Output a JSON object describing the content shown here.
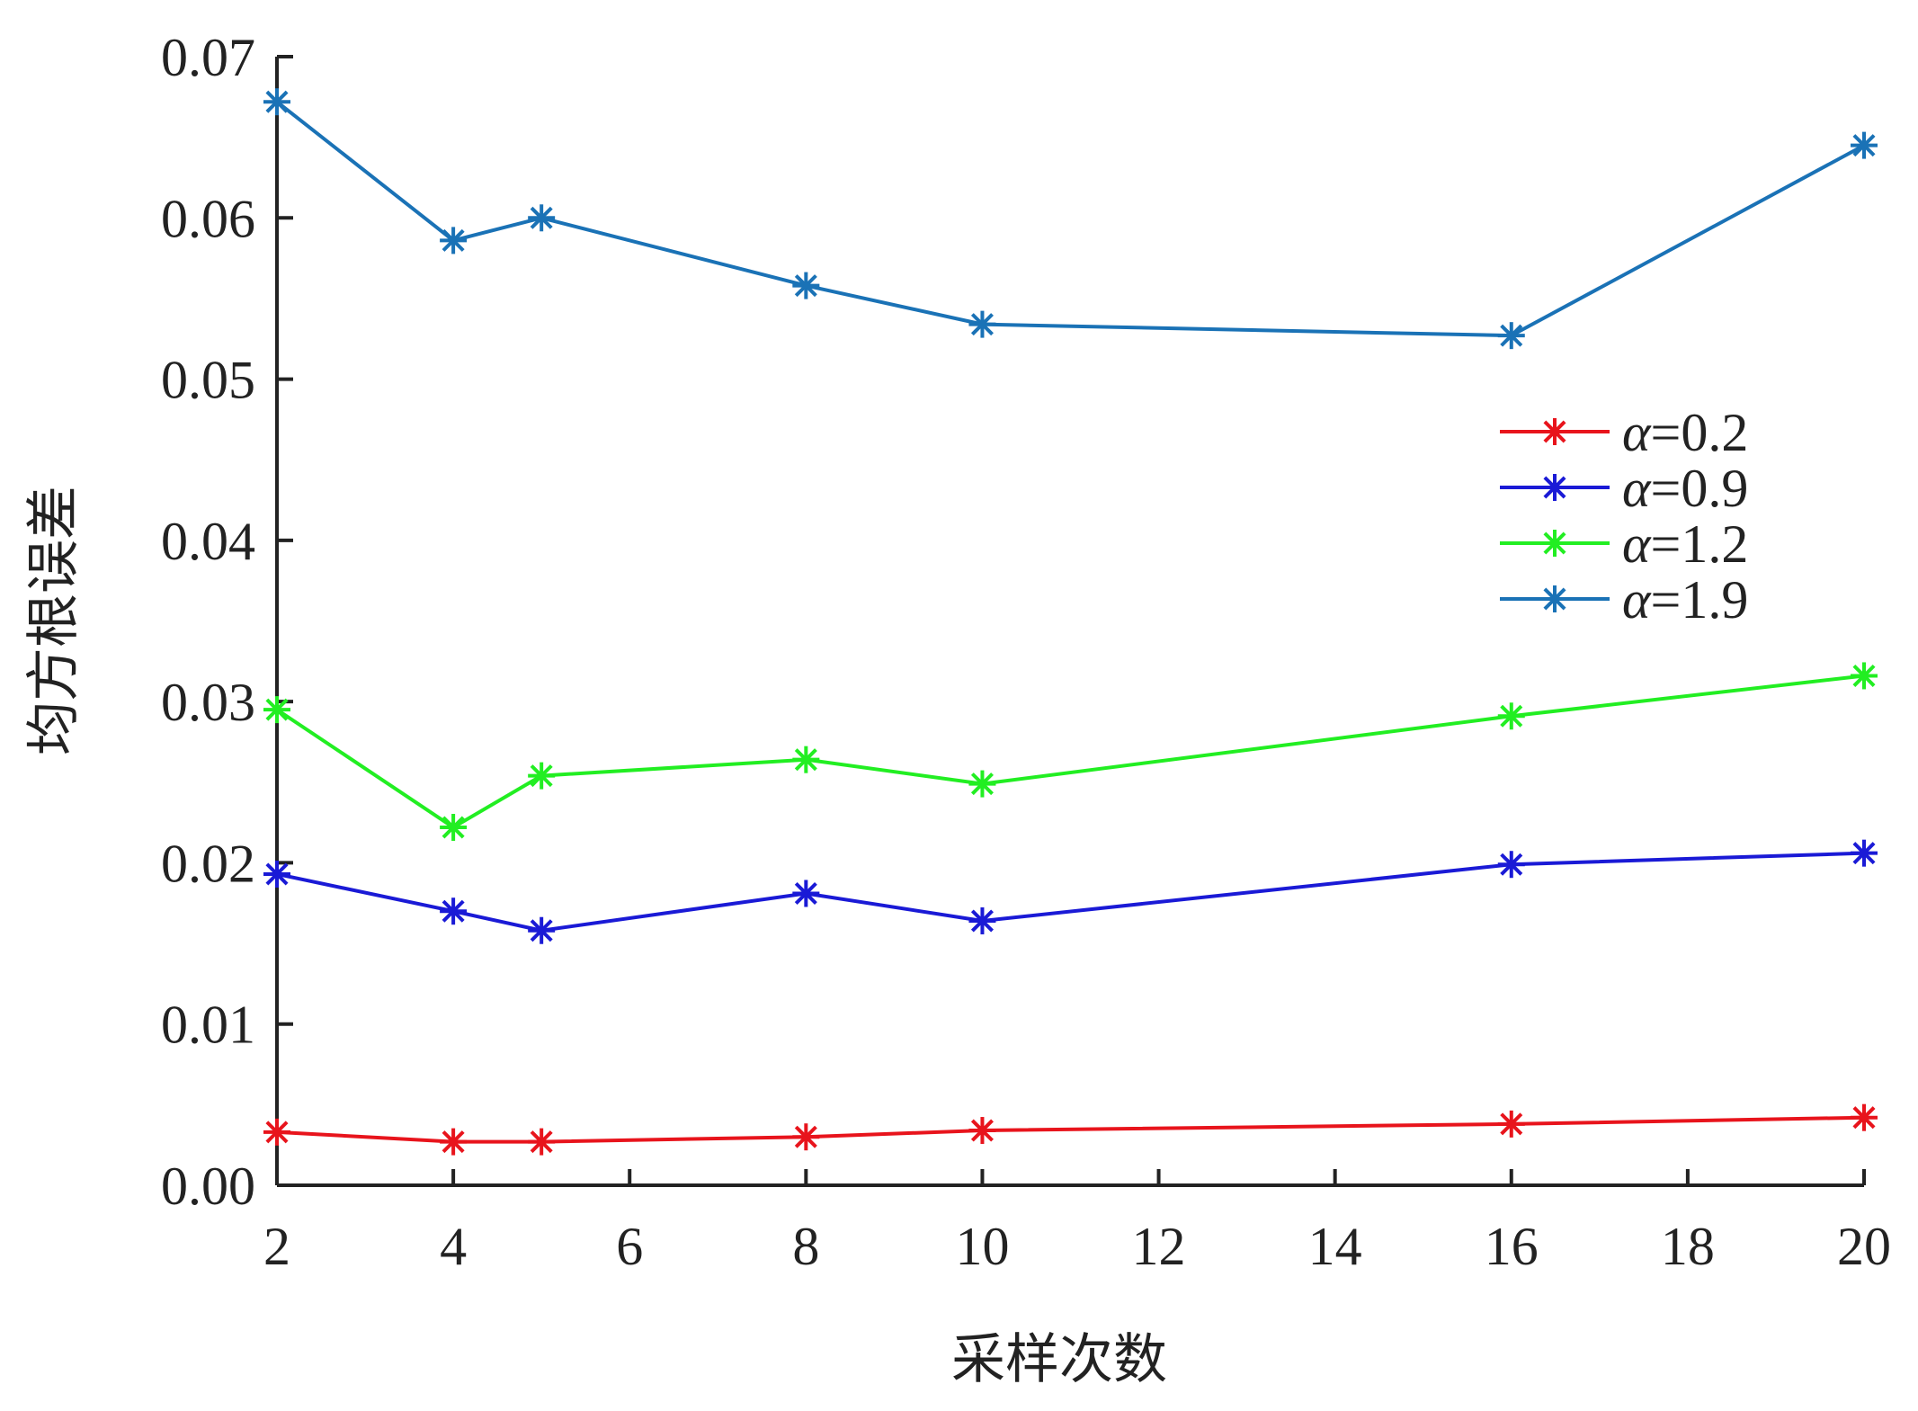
{
  "chart_data": {
    "type": "line",
    "title": "",
    "xlabel": "采样次数",
    "ylabel": "均方根误差",
    "x": [
      2,
      4,
      5,
      8,
      10,
      16,
      20
    ],
    "xlim": [
      2,
      20
    ],
    "ylim": [
      0,
      0.07
    ],
    "xticks": [
      "2",
      "4",
      "6",
      "8",
      "10",
      "12",
      "14",
      "16",
      "18",
      "20"
    ],
    "yticks": [
      "0.00",
      "0.01",
      "0.02",
      "0.03",
      "0.04",
      "0.05",
      "0.06",
      "0.07"
    ],
    "grid": false,
    "legend_position": "right",
    "marker": "asterisk",
    "series": [
      {
        "name": "α=0.2",
        "color": "#e8141c",
        "values": [
          0.0033,
          0.0027,
          0.0027,
          0.003,
          0.0034,
          0.0038,
          0.0042
        ]
      },
      {
        "name": "α=0.9",
        "color": "#1a1ad6",
        "values": [
          0.0193,
          0.017,
          0.0158,
          0.0181,
          0.0164,
          0.0199,
          0.0206
        ]
      },
      {
        "name": "α=1.2",
        "color": "#22ee22",
        "values": [
          0.0295,
          0.0222,
          0.0254,
          0.0264,
          0.0249,
          0.0291,
          0.0316
        ]
      },
      {
        "name": "α=1.9",
        "color": "#1a72b6",
        "values": [
          0.0672,
          0.0586,
          0.06,
          0.0558,
          0.0534,
          0.0527,
          0.0645
        ]
      }
    ]
  }
}
